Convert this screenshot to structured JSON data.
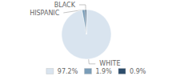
{
  "chart_data": {
    "type": "pie",
    "categories": [
      "WHITE",
      "HISPANIC",
      "BLACK"
    ],
    "values": [
      97.2,
      1.9,
      0.9
    ],
    "value_labels": [
      "97.2%",
      "1.9%",
      "0.9%"
    ],
    "colors": [
      "#d9e4ef",
      "#7a9db8",
      "#2d4d6b"
    ],
    "legend": "bottom"
  }
}
